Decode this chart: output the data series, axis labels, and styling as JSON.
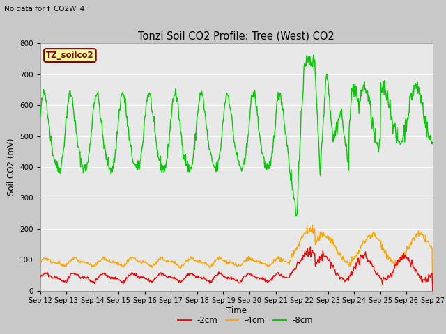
{
  "title": "Tonzi Soil CO2 Profile: Tree (West) CO2",
  "subtitle": "No data for f_CO2W_4",
  "ylabel": "Soil CO2 (mV)",
  "xlabel": "Time",
  "xlim_days": [
    12,
    27
  ],
  "ylim": [
    0,
    800
  ],
  "yticks": [
    0,
    100,
    200,
    300,
    400,
    500,
    600,
    700,
    800
  ],
  "xtick_labels": [
    "Sep 12",
    "Sep 13",
    "Sep 14",
    "Sep 15",
    "Sep 16",
    "Sep 17",
    "Sep 18",
    "Sep 19",
    "Sep 20",
    "Sep 21",
    "Sep 22",
    "Sep 23",
    "Sep 24",
    "Sep 25",
    "Sep 26",
    "Sep 27"
  ],
  "legend_labels": [
    "-2cm",
    "-4cm",
    "-8cm"
  ],
  "legend_colors": [
    "#ff0000",
    "#ffa500",
    "#00cc00"
  ],
  "line_colors": {
    "depth_2cm": "#ff0000",
    "depth_4cm": "#ffa500",
    "depth_8cm": "#00cc00"
  },
  "box_label": "TZ_soilco2",
  "box_facecolor": "#ffff99",
  "box_edgecolor": "#8b0000",
  "box_textcolor": "#8b0000",
  "plot_bg_color": "#e8e8e8",
  "fig_bg_color": "#c8c8c8",
  "grid_color": "#ffffff",
  "linewidth": 1.0
}
